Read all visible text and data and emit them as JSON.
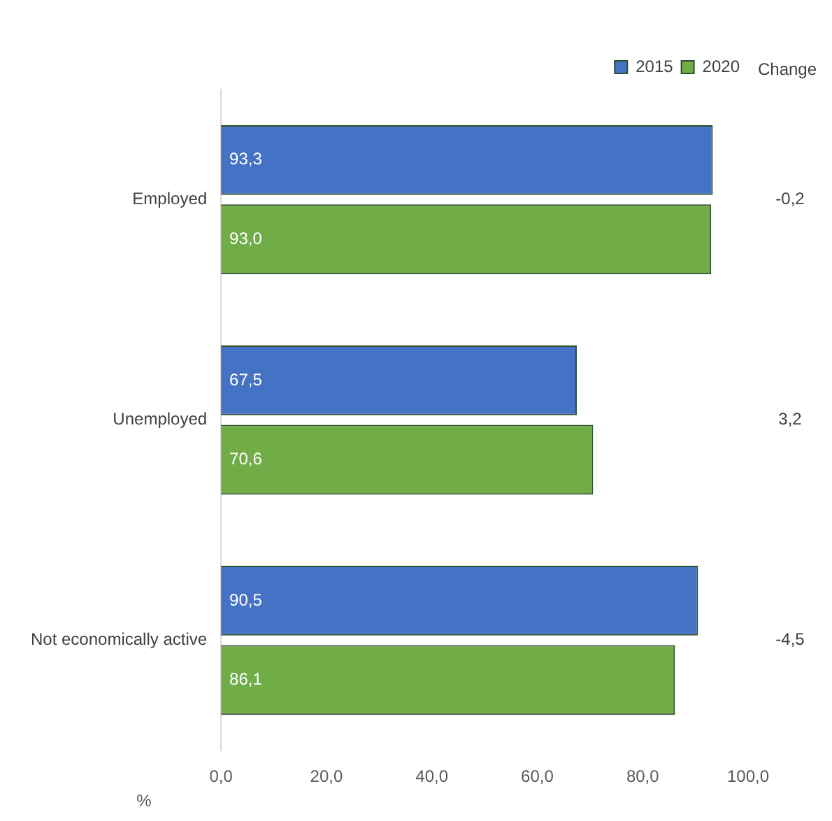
{
  "chart_data": {
    "type": "bar",
    "orientation": "horizontal",
    "categories": [
      "Employed",
      "Unemployed",
      "Not economically active"
    ],
    "series": [
      {
        "name": "2015",
        "color": "#4472c4",
        "values": [
          93.3,
          67.5,
          90.5
        ],
        "value_labels": [
          "93,3",
          "67,5",
          "90,5"
        ]
      },
      {
        "name": "2020",
        "color": "#70ad47",
        "values": [
          93.0,
          70.6,
          86.1
        ],
        "value_labels": [
          "93,0",
          "70,6",
          "86,1"
        ]
      }
    ],
    "xlim": [
      0,
      100
    ],
    "xticks": [
      {
        "value": 0,
        "label": "0,0"
      },
      {
        "value": 20,
        "label": "20,0"
      },
      {
        "value": 40,
        "label": "40,0"
      },
      {
        "value": 60,
        "label": "60,0"
      },
      {
        "value": 80,
        "label": "80,0"
      },
      {
        "value": 100,
        "label": "100,0"
      }
    ],
    "xlabel": "%",
    "grid": false,
    "legend": "top right",
    "annotations": [
      "Change",
      "-0,2",
      "3,2",
      "-4,5"
    ]
  }
}
